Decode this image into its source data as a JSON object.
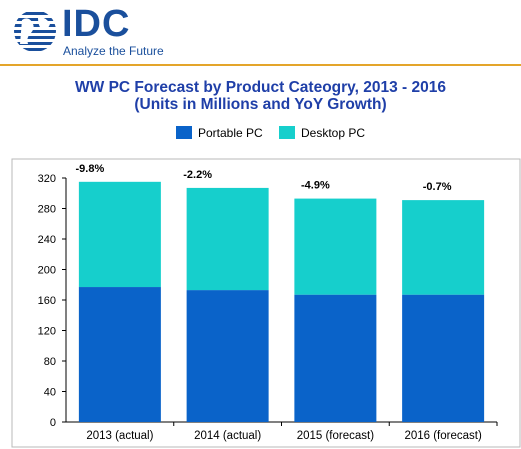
{
  "header": {
    "logo_text": "IDC",
    "tagline": "Analyze the Future"
  },
  "colors": {
    "portable": "#0a63c9",
    "desktop": "#16cfcc",
    "title": "#1f3fa8",
    "brand": "#1a4f9c",
    "rule": "#e4a52a"
  },
  "chart_data": {
    "type": "bar",
    "stacked": true,
    "title": "WW PC Forecast by Product Cateogry, 2013 - 2016",
    "subtitle": "(Units in Millions and YoY Growth)",
    "categories": [
      "2013 (actual)",
      "2014 (actual)",
      "2015 (forecast)",
      "2016 (forecast)"
    ],
    "series": [
      {
        "name": "Portable PC",
        "values": [
          177,
          173,
          167,
          167
        ]
      },
      {
        "name": "Desktop PC",
        "values": [
          138,
          134,
          126,
          124
        ]
      }
    ],
    "annotations": [
      "-9.8%",
      "-2.2%",
      "-4.9%",
      "-0.7%"
    ],
    "y_ticks": [
      "0",
      "40",
      "80",
      "120",
      "160",
      "200",
      "240",
      "280",
      "320"
    ],
    "ylim": [
      0,
      320
    ],
    "grid": false,
    "legend_position": "top"
  }
}
